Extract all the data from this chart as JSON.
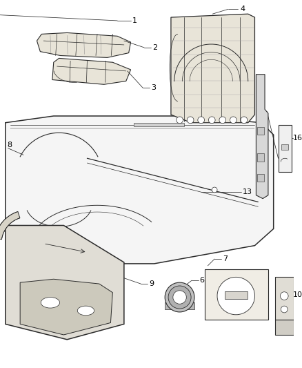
{
  "bg_color": "#ffffff",
  "line_color": "#2a2a2a",
  "label_color": "#000000",
  "figsize": [
    4.38,
    5.33
  ],
  "dpi": 100,
  "lw_main": 0.9,
  "lw_thin": 0.5,
  "lw_thick": 1.1
}
